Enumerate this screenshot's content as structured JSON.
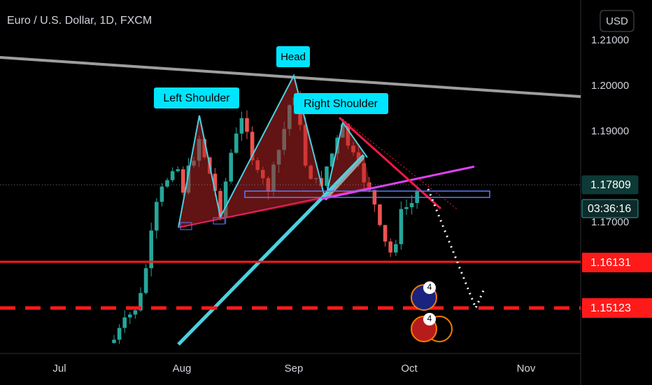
{
  "header": {
    "symbol": "Euro / U.S. Dollar, 1D, FXCM",
    "currency": "USD"
  },
  "price_axis": {
    "labels": [
      "1.21000",
      "1.20000",
      "1.19000",
      "1.17000"
    ]
  },
  "price_tags": {
    "current": "1.17809",
    "countdown": "03:36:16",
    "support": "1.16131",
    "target": "1.15123"
  },
  "time_axis": {
    "labels": [
      "Jul",
      "Aug",
      "Sep",
      "Oct",
      "Nov"
    ]
  },
  "annotations": {
    "head": "Head",
    "left_shoulder": "Left Shoulder",
    "right_shoulder": "Right Shoulder"
  },
  "events": {
    "euro": "4",
    "usd": "4"
  }
}
